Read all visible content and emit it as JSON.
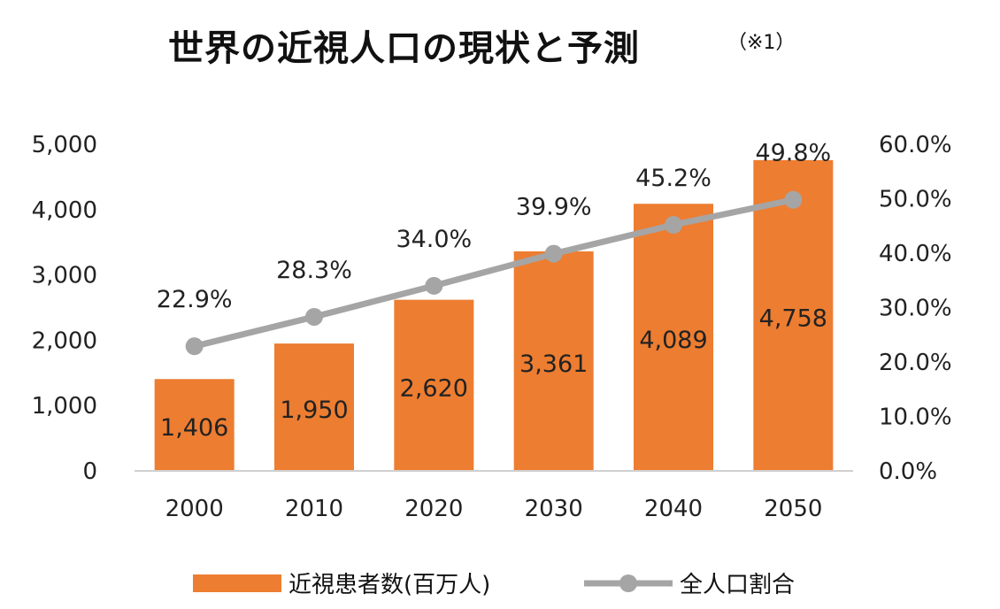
{
  "chart_data": {
    "type": "bar+line",
    "title": "世界の近視人口の現状と予測",
    "note": "（※1）",
    "categories": [
      "2000",
      "2010",
      "2020",
      "2030",
      "2040",
      "2050"
    ],
    "series": [
      {
        "name": "近視患者数(百万人)",
        "type": "bar",
        "axis": "left",
        "values": [
          1406,
          1950,
          2620,
          3361,
          4089,
          4758
        ],
        "labels": [
          "1,406",
          "1,950",
          "2,620",
          "3,361",
          "4,089",
          "4,758"
        ],
        "color": "#ED7D31"
      },
      {
        "name": "全人口割合",
        "type": "line",
        "axis": "right",
        "values": [
          22.9,
          28.3,
          34.0,
          39.9,
          45.2,
          49.8
        ],
        "labels": [
          "22.9%",
          "28.3%",
          "34.0%",
          "39.9%",
          "45.2%",
          "49.8%"
        ],
        "color": "#A5A5A5"
      }
    ],
    "left_axis": {
      "range": [
        0,
        5000
      ],
      "ticks": [
        "0",
        "1,000",
        "2,000",
        "3,000",
        "4,000",
        "5,000"
      ]
    },
    "right_axis": {
      "range": [
        0,
        60
      ],
      "ticks": [
        "0.0%",
        "10.0%",
        "20.0%",
        "30.0%",
        "40.0%",
        "50.0%",
        "60.0%"
      ]
    },
    "grid": false,
    "legend": "bottom"
  }
}
